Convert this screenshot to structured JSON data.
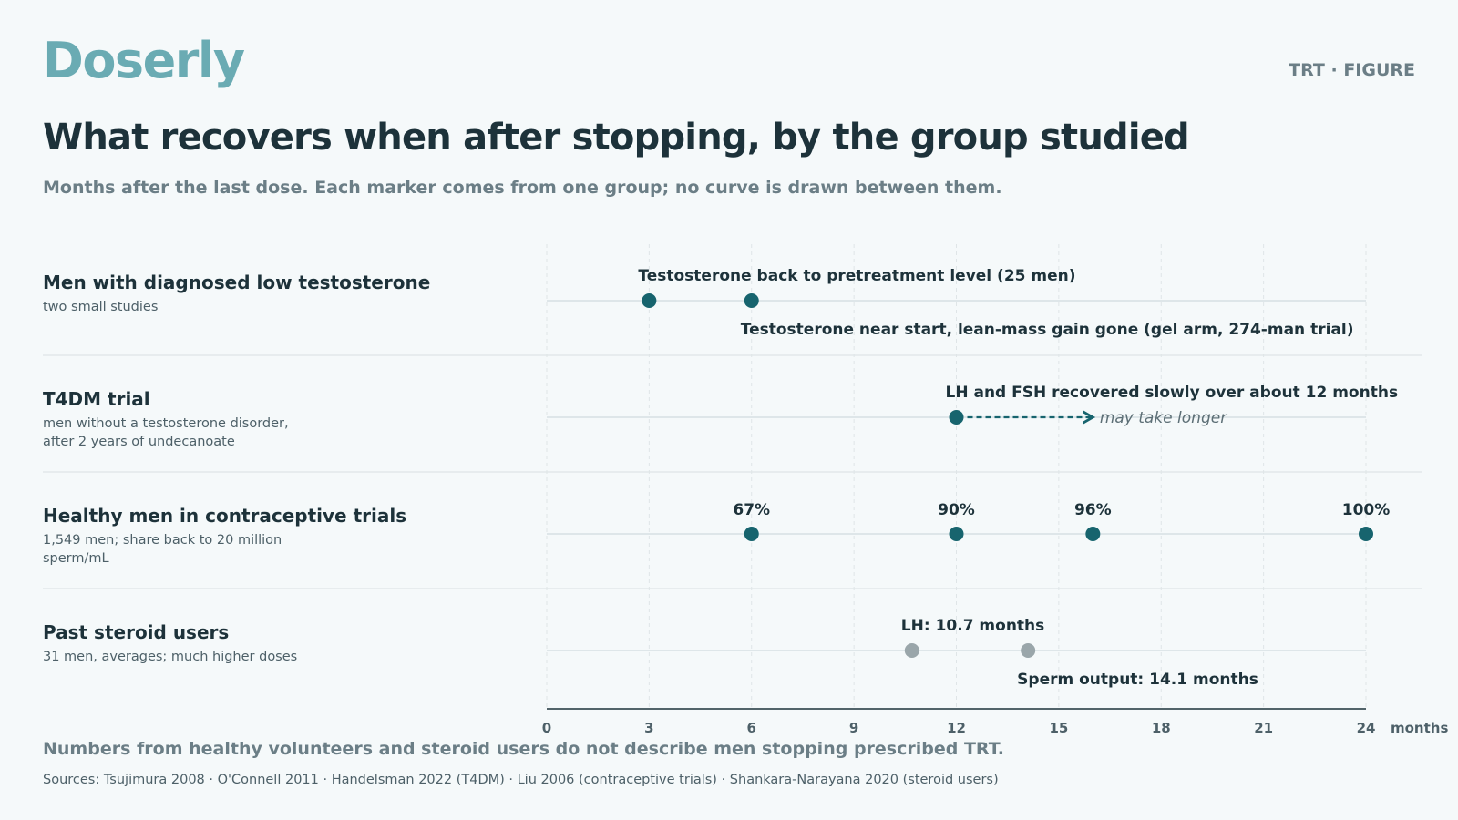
{
  "brand": "Doserly",
  "tag": "TRT · FIGURE",
  "header": {
    "title": "What recovers when after stopping, by the group studied",
    "subtitle": "Months after the last dose. Each marker comes from one group; no curve is drawn between them."
  },
  "colors": {
    "accent": "#6aabb3",
    "marker": "#17646e",
    "marker_muted": "#9aa6aa",
    "grid": "#dfe5e7",
    "track": "#d6e0e3"
  },
  "chart_data": {
    "type": "scatter",
    "xlabel": "months",
    "xlim": [
      0,
      24
    ],
    "xticks": [
      "0",
      "3",
      "6",
      "9",
      "12",
      "15",
      "18",
      "21",
      "24"
    ],
    "grid": true,
    "rows": [
      {
        "name": "Men with diagnosed low testosterone",
        "note": "two small studies",
        "points": [
          {
            "x": 3,
            "color": "marker"
          },
          {
            "x": 6,
            "color": "marker"
          }
        ],
        "labels": [
          {
            "text": "Testosterone back to pretreatment level (25 men)",
            "x": 3,
            "pos": "above"
          },
          {
            "text": "Testosterone near start, lean-mass gain gone (gel arm, 274-man trial)",
            "x": 6,
            "pos": "below"
          }
        ]
      },
      {
        "name": "T4DM trial",
        "note": "men without a testosterone disorder, after 2 years of undecanoate",
        "points": [
          {
            "x": 12,
            "color": "marker"
          }
        ],
        "labels": [
          {
            "text": "LH and FSH recovered slowly over about 12 months",
            "x": 12,
            "pos": "above"
          },
          {
            "text": "may take longer",
            "x": 16.2,
            "pos": "right-italic"
          }
        ],
        "arrow": {
          "from": 12,
          "to": 16
        }
      },
      {
        "name": "Healthy men in contraceptive trials",
        "note": "1,549 men; share back to 20 million sperm/mL",
        "points": [
          {
            "x": 6,
            "value": "67%",
            "color": "marker"
          },
          {
            "x": 12,
            "value": "90%",
            "color": "marker"
          },
          {
            "x": 16,
            "value": "96%",
            "color": "marker"
          },
          {
            "x": 24,
            "value": "100%",
            "color": "marker"
          }
        ]
      },
      {
        "name": "Past steroid users",
        "note": "31 men, averages; much higher doses",
        "points": [
          {
            "x": 10.7,
            "color": "marker_muted"
          },
          {
            "x": 14.1,
            "color": "marker_muted"
          }
        ],
        "labels": [
          {
            "text": "LH: 10.7 months",
            "x": 10.7,
            "pos": "above"
          },
          {
            "text": "Sperm output: 14.1 months",
            "x": 14.1,
            "pos": "below"
          }
        ]
      }
    ]
  },
  "footer": {
    "note": "Numbers from healthy volunteers and steroid users do not describe men stopping prescribed TRT.",
    "sources": "Sources: Tsujimura 2008 · O'Connell 2011 · Handelsman 2022 (T4DM) · Liu 2006 (contraceptive trials) · Shankara-Narayana 2020 (steroid users)"
  }
}
